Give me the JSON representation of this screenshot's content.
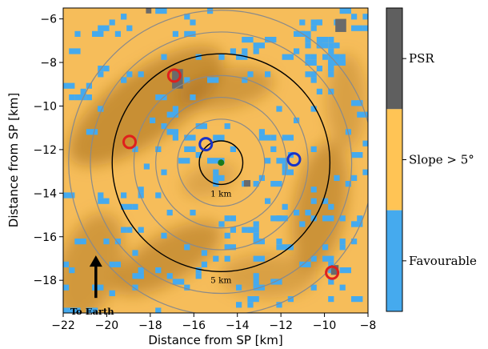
{
  "chart_data": {
    "type": "heatmap",
    "xlabel": "Distance from SP [km]",
    "ylabel": "Distance from SP [km]",
    "xlim": [
      -22,
      -8
    ],
    "ylim": [
      -19.5,
      -5.5
    ],
    "xticks": [
      -22,
      -20,
      -18,
      -16,
      -14,
      -12,
      -10,
      -8
    ],
    "yticks": [
      -6,
      -8,
      -10,
      -12,
      -14,
      -16,
      -18
    ],
    "grid": false,
    "crater_center": [
      -14.75,
      -12.6
    ],
    "center_marker_color": "#1a7a1a",
    "rings_km": [
      1,
      2,
      3,
      4,
      5,
      6,
      7
    ],
    "labeled_rings": [
      {
        "radius": 1,
        "label": "1 km"
      },
      {
        "radius": 5,
        "label": "5 km"
      }
    ],
    "candidate_sites": [
      {
        "x": -16.9,
        "y": -8.6,
        "color": "red"
      },
      {
        "x": -18.95,
        "y": -11.65,
        "color": "red"
      },
      {
        "x": -9.65,
        "y": -17.65,
        "color": "red"
      },
      {
        "x": -15.45,
        "y": -11.75,
        "color": "blue"
      },
      {
        "x": -11.4,
        "y": -12.45,
        "color": "blue"
      }
    ],
    "annotation": {
      "text": "To Earth",
      "arrow": "up",
      "x": -20.5,
      "y": -18.0
    },
    "colorbar": {
      "position": "right",
      "categories": [
        {
          "label": "PSR",
          "color": "#5f5f5f"
        },
        {
          "label": "Slope > 5°",
          "color": "#ffc455"
        },
        {
          "label": "Favourable",
          "color": "#45aaee"
        }
      ]
    },
    "colors": {
      "slope": "#f6bd5a",
      "shade_dark": "#a36a18",
      "favourable": "#45aaee",
      "psr": "#6a6a6a",
      "ring_gray": "#8a8a8a",
      "ring_black": "#000000",
      "site_red": "#e0201c",
      "site_blue": "#1832c8"
    }
  }
}
